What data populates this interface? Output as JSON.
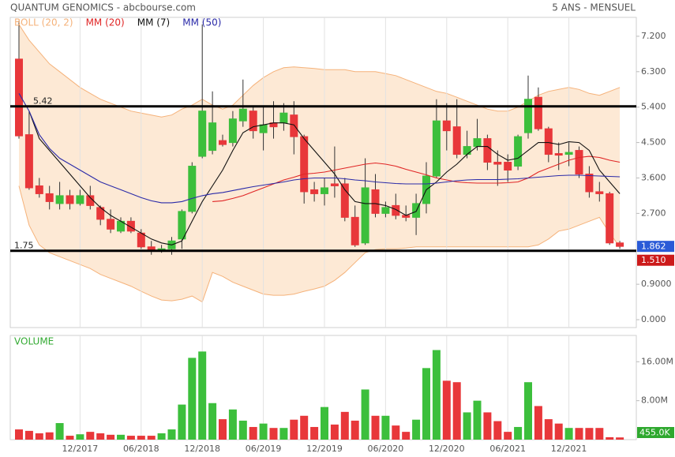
{
  "chart_data": [
    {
      "type": "candlestick",
      "title": "QUANTUM GENOMICS - abcbourse.com",
      "subtitle": "5 ANS - MENSUEL",
      "up_color": "#3cbf3c",
      "down_color": "#e8373a",
      "ylim": [
        -0.2,
        7.68
      ],
      "yticks": [
        {
          "value": 0,
          "label": "0.000"
        },
        {
          "value": 0.9,
          "label": "0.9000"
        },
        {
          "value": 2.7,
          "label": "2.700"
        },
        {
          "value": 3.6,
          "label": "3.600"
        },
        {
          "value": 4.5,
          "label": "4.500"
        },
        {
          "value": 5.4,
          "label": "5.400"
        },
        {
          "value": 6.3,
          "label": "6.300"
        },
        {
          "value": 7.2,
          "label": "7.200"
        }
      ],
      "open": [
        6.62,
        4.7,
        3.4,
        3.2,
        2.95,
        3.15,
        2.95,
        3.15,
        2.85,
        2.55,
        2.25,
        2.5,
        2.2,
        1.85,
        1.78,
        1.8,
        2.05,
        2.75,
        4.15,
        4.3,
        4.55,
        4.5,
        5.05,
        5.3,
        4.75,
        5.0,
        5.0,
        5.2,
        4.65,
        3.3,
        3.2,
        3.45,
        3.45,
        2.6,
        1.95,
        3.3,
        2.7,
        2.9,
        2.65,
        2.6,
        2.95,
        3.65,
        5.05,
        4.9,
        4.2,
        4.4,
        4.6,
        4.0,
        4.0,
        3.9,
        4.75,
        5.65,
        4.85,
        4.22,
        4.2,
        4.3,
        3.7,
        3.25,
        3.2,
        1.95
      ],
      "high": [
        7.6,
        5.3,
        3.6,
        3.4,
        3.5,
        3.3,
        3.3,
        3.4,
        2.9,
        2.8,
        2.6,
        2.6,
        2.3,
        2.0,
        1.9,
        2.1,
        2.8,
        4.0,
        7.5,
        5.8,
        4.7,
        5.3,
        6.1,
        5.4,
        5.4,
        5.55,
        5.5,
        5.55,
        4.7,
        3.5,
        3.6,
        4.4,
        3.6,
        2.9,
        4.1,
        3.7,
        3.0,
        3.2,
        2.9,
        3.2,
        4.0,
        5.6,
        5.5,
        5.6,
        4.8,
        5.1,
        4.7,
        4.3,
        4.2,
        4.7,
        6.2,
        5.9,
        4.9,
        4.5,
        4.5,
        4.4,
        3.9,
        3.5,
        3.25,
        2.0
      ],
      "low": [
        4.6,
        3.3,
        3.1,
        2.8,
        2.8,
        2.8,
        2.9,
        2.8,
        2.4,
        2.2,
        2.2,
        2.2,
        1.8,
        1.65,
        1.7,
        1.65,
        1.8,
        2.7,
        4.1,
        4.2,
        4.4,
        4.4,
        4.9,
        4.6,
        4.3,
        4.6,
        4.8,
        4.2,
        2.95,
        3.0,
        2.9,
        3.1,
        2.5,
        1.85,
        1.9,
        2.6,
        2.6,
        2.55,
        2.5,
        2.15,
        2.7,
        3.6,
        4.3,
        4.1,
        4.1,
        4.3,
        3.8,
        3.4,
        3.5,
        3.8,
        4.6,
        4.8,
        4.0,
        3.8,
        3.9,
        3.6,
        3.1,
        3.0,
        1.9,
        1.8
      ],
      "close": [
        4.67,
        3.35,
        3.2,
        3.0,
        3.15,
        2.95,
        3.15,
        2.9,
        2.55,
        2.3,
        2.5,
        2.25,
        1.85,
        1.75,
        1.8,
        2.0,
        2.75,
        3.9,
        5.3,
        5.0,
        4.45,
        5.1,
        5.35,
        4.8,
        4.95,
        4.9,
        5.25,
        4.65,
        3.25,
        3.2,
        3.35,
        3.4,
        2.6,
        1.9,
        3.35,
        2.7,
        2.85,
        2.65,
        2.6,
        2.95,
        3.65,
        5.05,
        4.8,
        4.2,
        4.4,
        4.6,
        4.0,
        3.95,
        3.8,
        4.65,
        5.6,
        4.85,
        4.2,
        4.18,
        4.25,
        3.7,
        3.25,
        3.2,
        1.95,
        1.862
      ],
      "series": [
        {
          "name": "BOLL (20, 2)",
          "type": "band",
          "color": "#f5b27a",
          "fill": "#fde9d5",
          "upper": [
            7.5,
            7.1,
            6.8,
            6.5,
            6.3,
            6.1,
            5.9,
            5.75,
            5.6,
            5.5,
            5.4,
            5.3,
            5.25,
            5.2,
            5.15,
            5.2,
            5.35,
            5.45,
            5.6,
            5.45,
            5.35,
            5.45,
            5.7,
            5.95,
            6.15,
            6.3,
            6.4,
            6.42,
            6.4,
            6.38,
            6.35,
            6.35,
            6.35,
            6.3,
            6.3,
            6.3,
            6.25,
            6.2,
            6.1,
            6.0,
            5.9,
            5.8,
            5.75,
            5.65,
            5.55,
            5.45,
            5.35,
            5.3,
            5.3,
            5.4,
            5.55,
            5.7,
            5.8,
            5.85,
            5.9,
            5.85,
            5.75,
            5.7,
            5.8,
            5.9
          ],
          "lower": [
            3.4,
            2.4,
            1.9,
            1.7,
            1.6,
            1.5,
            1.4,
            1.3,
            1.15,
            1.05,
            0.95,
            0.85,
            0.72,
            0.6,
            0.5,
            0.48,
            0.52,
            0.6,
            0.45,
            1.2,
            1.1,
            0.95,
            0.85,
            0.75,
            0.65,
            0.62,
            0.62,
            0.65,
            0.72,
            0.78,
            0.85,
            1.0,
            1.2,
            1.45,
            1.7,
            1.78,
            1.8,
            1.8,
            1.82,
            1.85,
            1.85,
            1.85,
            1.85,
            1.85,
            1.85,
            1.85,
            1.85,
            1.85,
            1.85,
            1.85,
            1.85,
            1.9,
            2.05,
            2.25,
            2.3,
            2.4,
            2.5,
            2.6,
            2.2,
            1.85
          ]
        },
        {
          "name": "MM (20)",
          "color": "#e02525",
          "values": [
            null,
            null,
            null,
            null,
            null,
            null,
            null,
            null,
            null,
            null,
            null,
            null,
            null,
            null,
            null,
            null,
            null,
            null,
            null,
            3.0,
            3.02,
            3.08,
            3.15,
            3.25,
            3.35,
            3.45,
            3.55,
            3.62,
            3.7,
            3.72,
            3.75,
            3.8,
            3.85,
            3.9,
            3.95,
            3.98,
            3.95,
            3.9,
            3.82,
            3.75,
            3.68,
            3.6,
            3.55,
            3.5,
            3.48,
            3.47,
            3.47,
            3.47,
            3.48,
            3.5,
            3.6,
            3.75,
            3.85,
            3.95,
            4.05,
            4.12,
            4.15,
            4.12,
            4.05,
            4.0
          ]
        },
        {
          "name": "MM (7)",
          "color": "#111111",
          "values": [
            null,
            5.3,
            4.6,
            4.3,
            4.0,
            3.7,
            3.4,
            3.1,
            2.85,
            2.65,
            2.5,
            2.35,
            2.2,
            2.05,
            1.95,
            1.9,
            2.0,
            2.5,
            3.0,
            3.4,
            3.8,
            4.3,
            4.75,
            4.9,
            4.95,
            5.0,
            5.0,
            4.95,
            4.6,
            4.3,
            4.0,
            3.7,
            3.3,
            3.0,
            2.95,
            2.95,
            2.9,
            2.8,
            2.65,
            2.75,
            3.3,
            3.5,
            3.75,
            3.95,
            4.2,
            4.4,
            4.4,
            4.2,
            4.05,
            4.1,
            4.3,
            4.5,
            4.5,
            4.45,
            4.52,
            4.5,
            4.3,
            3.8,
            3.5,
            3.2
          ]
        },
        {
          "name": "MM (50)",
          "color": "#2a2aa8",
          "values": [
            5.75,
            5.3,
            4.7,
            4.35,
            4.1,
            3.95,
            3.8,
            3.65,
            3.5,
            3.4,
            3.3,
            3.2,
            3.1,
            3.02,
            2.97,
            2.97,
            3.0,
            3.08,
            3.15,
            3.2,
            3.23,
            3.28,
            3.33,
            3.38,
            3.42,
            3.46,
            3.5,
            3.55,
            3.58,
            3.6,
            3.6,
            3.6,
            3.58,
            3.55,
            3.53,
            3.5,
            3.48,
            3.46,
            3.45,
            3.45,
            3.45,
            3.47,
            3.5,
            3.53,
            3.55,
            3.56,
            3.56,
            3.56,
            3.57,
            3.58,
            3.6,
            3.62,
            3.64,
            3.66,
            3.67,
            3.67,
            3.66,
            3.65,
            3.64,
            3.63
          ]
        }
      ],
      "levels": [
        5.42,
        1.75
      ],
      "price_tags": [
        1.862,
        {
          "value": 1.51,
          "label": "1.510"
        }
      ],
      "price_tag_colors": [
        "#2a5bd7",
        "#cc1a1a"
      ]
    },
    {
      "type": "bar",
      "title": "VOLUME",
      "title_color": "#33aa33",
      "categories": [
        null,
        null,
        null,
        null,
        null,
        null,
        "12/2017",
        null,
        null,
        null,
        null,
        null,
        "06/2018",
        null,
        null,
        null,
        null,
        null,
        "12/2018",
        null,
        null,
        null,
        null,
        null,
        "06/2019",
        null,
        null,
        null,
        null,
        null,
        "12/2019",
        null,
        null,
        null,
        null,
        null,
        "06/2020",
        null,
        null,
        null,
        null,
        null,
        "12/2020",
        null,
        null,
        null,
        null,
        null,
        "06/2021",
        null,
        null,
        null,
        null,
        null,
        "12/2021",
        null,
        null,
        null,
        null,
        null
      ],
      "values": [
        2100000,
        1800000,
        1300000,
        1500000,
        3400000,
        800000,
        1100000,
        1600000,
        1300000,
        1000000,
        1000000,
        800000,
        800000,
        800000,
        1300000,
        2100000,
        7200000,
        16800000,
        18100000,
        7500000,
        4200000,
        6200000,
        3900000,
        2600000,
        3300000,
        2400000,
        2400000,
        4100000,
        4900000,
        2600000,
        6700000,
        3100000,
        5700000,
        3900000,
        10300000,
        4900000,
        4900000,
        2900000,
        1600000,
        4100000,
        14700000,
        18400000,
        12100000,
        11800000,
        5600000,
        8000000,
        5600000,
        3800000,
        1600000,
        2600000,
        11800000,
        6900000,
        4200000,
        3300000,
        2400000,
        2400000,
        2400000,
        2400000,
        500000,
        455000
      ],
      "ylim": [
        0,
        21400000
      ],
      "yticks": [
        {
          "value": 8000000,
          "label": "8.00M"
        },
        {
          "value": 16000000,
          "label": "16.00M"
        }
      ],
      "last_tag": {
        "value": 455000,
        "label": "455.0K"
      },
      "last_tag_color": "#2ea82e"
    }
  ]
}
